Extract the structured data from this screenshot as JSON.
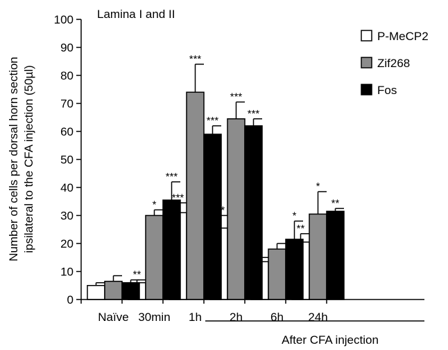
{
  "chart_data": {
    "type": "bar",
    "title": "Lamina I and II",
    "ylabel_line1": "Number of cells per dorsal horn section",
    "ylabel_line2": "ipsilateral to the CFA injection (50µl)",
    "xlabel": "",
    "group_label": "After CFA injection",
    "categories": [
      "Naïve",
      "30min",
      "1h",
      "2h",
      "6h",
      "24h"
    ],
    "ylim": [
      0,
      100
    ],
    "yticks": [
      "0",
      "10",
      "20",
      "30",
      "40",
      "50",
      "60",
      "70",
      "80",
      "90",
      "100"
    ],
    "legend_position": "top-right",
    "grid": false,
    "series": [
      {
        "name": "P-MeCP2",
        "color": "#ffffff",
        "values": [
          5,
          6,
          31,
          25.5,
          13.5,
          20.5
        ],
        "errors": [
          1,
          1,
          3.5,
          4.5,
          1.5,
          3
        ],
        "significance": [
          "",
          "**",
          "***",
          "***",
          "",
          "**"
        ]
      },
      {
        "name": "Zif268",
        "color": "#8c8c8c",
        "values": [
          6.5,
          30,
          74,
          64.5,
          18,
          30.5
        ],
        "errors": [
          2,
          2,
          10,
          6,
          2,
          8
        ],
        "significance": [
          "",
          "*",
          "***",
          "***",
          "",
          "*"
        ]
      },
      {
        "name": "Fos",
        "color": "#000000",
        "values": [
          6,
          35.5,
          59,
          62,
          21.5,
          31.5
        ],
        "errors": [
          1,
          6.5,
          3,
          2.5,
          6.5,
          1
        ],
        "significance": [
          "",
          "***",
          "***",
          "***",
          "*",
          "**"
        ]
      }
    ]
  }
}
